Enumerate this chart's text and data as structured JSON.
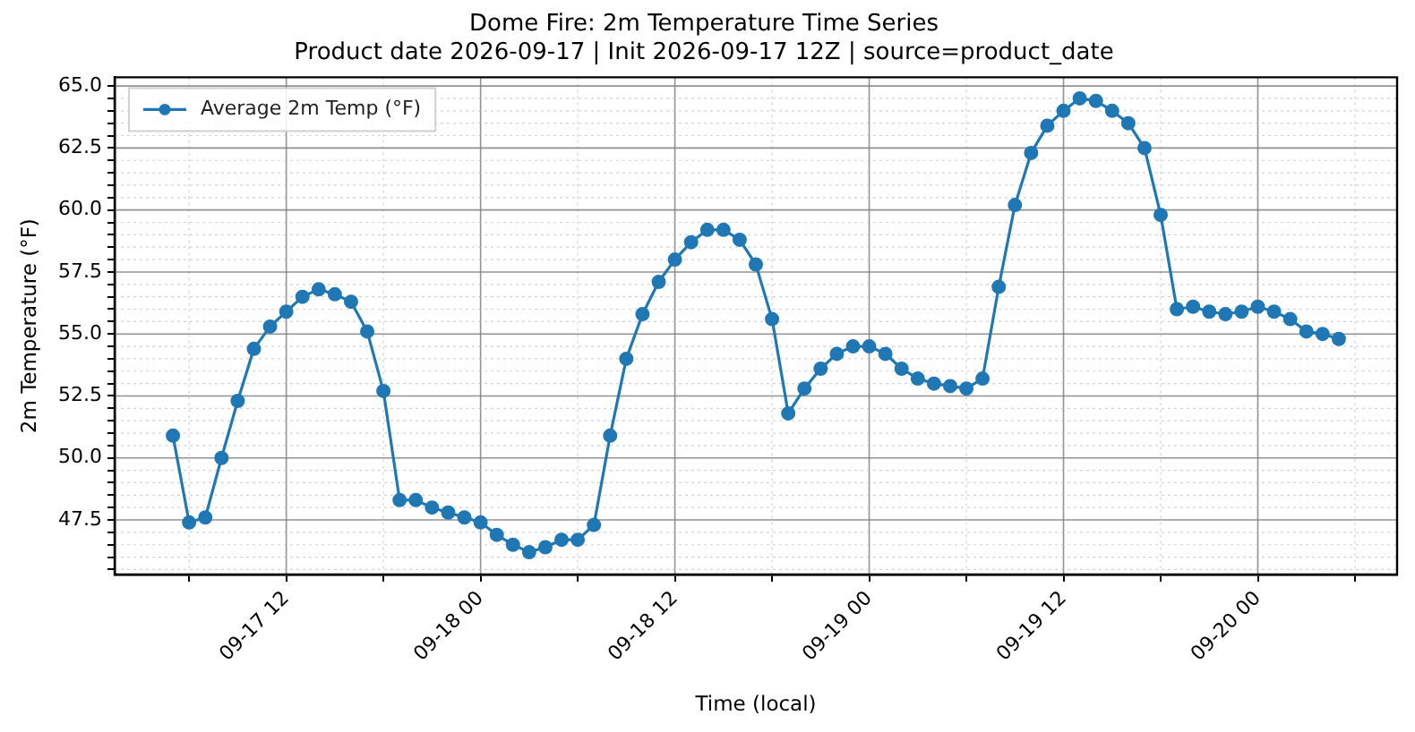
{
  "chart_data": {
    "type": "line",
    "title": "Dome Fire: 2m Temperature Time Series",
    "subtitle": "Product date 2026-09-17 | Init 2026-09-17 12Z | source=product_date",
    "xlabel": "Time (local)",
    "ylabel": "2m Temperature (°F)",
    "x": [
      "2026-09-17T05:00",
      "2026-09-17T06:00",
      "2026-09-17T07:00",
      "2026-09-17T08:00",
      "2026-09-17T09:00",
      "2026-09-17T10:00",
      "2026-09-17T11:00",
      "2026-09-17T12:00",
      "2026-09-17T13:00",
      "2026-09-17T14:00",
      "2026-09-17T15:00",
      "2026-09-17T16:00",
      "2026-09-17T17:00",
      "2026-09-17T18:00",
      "2026-09-17T19:00",
      "2026-09-17T20:00",
      "2026-09-17T21:00",
      "2026-09-17T22:00",
      "2026-09-17T23:00",
      "2026-09-18T00:00",
      "2026-09-18T01:00",
      "2026-09-18T02:00",
      "2026-09-18T03:00",
      "2026-09-18T04:00",
      "2026-09-18T05:00",
      "2026-09-18T06:00",
      "2026-09-18T07:00",
      "2026-09-18T08:00",
      "2026-09-18T09:00",
      "2026-09-18T10:00",
      "2026-09-18T11:00",
      "2026-09-18T12:00",
      "2026-09-18T13:00",
      "2026-09-18T14:00",
      "2026-09-18T15:00",
      "2026-09-18T16:00",
      "2026-09-18T17:00",
      "2026-09-18T18:00",
      "2026-09-18T19:00",
      "2026-09-18T20:00",
      "2026-09-18T21:00",
      "2026-09-18T22:00",
      "2026-09-18T23:00",
      "2026-09-19T00:00",
      "2026-09-19T01:00",
      "2026-09-19T02:00",
      "2026-09-19T03:00",
      "2026-09-19T04:00",
      "2026-09-19T05:00",
      "2026-09-19T06:00",
      "2026-09-19T07:00",
      "2026-09-19T08:00",
      "2026-09-19T09:00",
      "2026-09-19T10:00",
      "2026-09-19T11:00",
      "2026-09-19T12:00",
      "2026-09-19T13:00",
      "2026-09-19T14:00",
      "2026-09-19T15:00",
      "2026-09-19T16:00",
      "2026-09-19T17:00",
      "2026-09-19T18:00",
      "2026-09-19T19:00",
      "2026-09-19T20:00",
      "2026-09-19T21:00",
      "2026-09-19T22:00",
      "2026-09-19T23:00",
      "2026-09-20T00:00",
      "2026-09-20T01:00",
      "2026-09-20T02:00",
      "2026-09-20T03:00",
      "2026-09-20T04:00",
      "2026-09-20T05:00"
    ],
    "series": [
      {
        "name": "Average 2m Temp (°F)",
        "color": "#1f77b4",
        "values": [
          50.9,
          47.4,
          47.6,
          50.0,
          52.3,
          54.4,
          55.3,
          55.9,
          56.5,
          56.8,
          56.6,
          56.3,
          55.1,
          52.7,
          48.3,
          48.3,
          48.0,
          47.8,
          47.6,
          47.4,
          46.9,
          46.5,
          46.2,
          46.4,
          46.7,
          46.7,
          47.3,
          50.9,
          54.0,
          55.8,
          57.1,
          58.0,
          58.7,
          59.2,
          59.2,
          58.8,
          57.8,
          55.6,
          51.8,
          52.8,
          53.6,
          54.2,
          54.5,
          54.5,
          54.2,
          53.6,
          53.2,
          53.0,
          52.9,
          52.8,
          53.2,
          56.9,
          60.2,
          62.3,
          63.4,
          64.0,
          64.5,
          64.4,
          64.0,
          63.5,
          62.5,
          59.8,
          56.0,
          56.1,
          55.9,
          55.8,
          55.9,
          56.1,
          55.9,
          55.6,
          55.1,
          55.0,
          54.8
        ]
      }
    ],
    "xlim": [
      "2026-09-17T01:24",
      "2026-09-20T08:36"
    ],
    "xticks": [
      {
        "value": "2026-09-17T06:00",
        "label": null
      },
      {
        "value": "2026-09-17T12:00",
        "label": "09-17 12"
      },
      {
        "value": "2026-09-17T18:00",
        "label": null
      },
      {
        "value": "2026-09-18T00:00",
        "label": "09-18 00"
      },
      {
        "value": "2026-09-18T06:00",
        "label": null
      },
      {
        "value": "2026-09-18T12:00",
        "label": "09-18 12"
      },
      {
        "value": "2026-09-18T18:00",
        "label": null
      },
      {
        "value": "2026-09-19T00:00",
        "label": "09-19 00"
      },
      {
        "value": "2026-09-19T06:00",
        "label": null
      },
      {
        "value": "2026-09-19T12:00",
        "label": "09-19 12"
      },
      {
        "value": "2026-09-19T18:00",
        "label": null
      },
      {
        "value": "2026-09-20T00:00",
        "label": "09-20 00"
      },
      {
        "value": "2026-09-20T06:00",
        "label": null
      }
    ],
    "ylim": [
      45.3,
      65.35
    ],
    "yticks": [
      {
        "value": 45.5,
        "label": null
      },
      {
        "value": 46,
        "label": null
      },
      {
        "value": 46.5,
        "label": null
      },
      {
        "value": 47,
        "label": null
      },
      {
        "value": 47.5,
        "label": "47.5"
      },
      {
        "value": 48,
        "label": null
      },
      {
        "value": 48.5,
        "label": null
      },
      {
        "value": 49,
        "label": null
      },
      {
        "value": 49.5,
        "label": null
      },
      {
        "value": 50,
        "label": "50.0"
      },
      {
        "value": 50.5,
        "label": null
      },
      {
        "value": 51,
        "label": null
      },
      {
        "value": 51.5,
        "label": null
      },
      {
        "value": 52,
        "label": null
      },
      {
        "value": 52.5,
        "label": "52.5"
      },
      {
        "value": 53,
        "label": null
      },
      {
        "value": 53.5,
        "label": null
      },
      {
        "value": 54,
        "label": null
      },
      {
        "value": 54.5,
        "label": null
      },
      {
        "value": 55,
        "label": "55.0"
      },
      {
        "value": 55.5,
        "label": null
      },
      {
        "value": 56,
        "label": null
      },
      {
        "value": 56.5,
        "label": null
      },
      {
        "value": 57,
        "label": null
      },
      {
        "value": 57.5,
        "label": "57.5"
      },
      {
        "value": 58,
        "label": null
      },
      {
        "value": 58.5,
        "label": null
      },
      {
        "value": 59,
        "label": null
      },
      {
        "value": 59.5,
        "label": null
      },
      {
        "value": 60,
        "label": "60.0"
      },
      {
        "value": 60.5,
        "label": null
      },
      {
        "value": 61,
        "label": null
      },
      {
        "value": 61.5,
        "label": null
      },
      {
        "value": 62,
        "label": null
      },
      {
        "value": 62.5,
        "label": "62.5"
      },
      {
        "value": 63,
        "label": null
      },
      {
        "value": 63.5,
        "label": null
      },
      {
        "value": 64,
        "label": null
      },
      {
        "value": 64.5,
        "label": null
      },
      {
        "value": 65,
        "label": "65.0"
      }
    ],
    "grid": true,
    "legend": "top left",
    "marker": "circle",
    "line_style": "solid"
  }
}
